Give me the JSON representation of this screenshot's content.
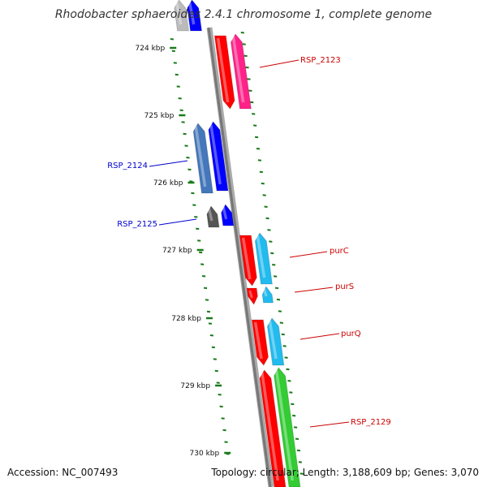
{
  "title": "Rhodobacter sphaeroides 2.4.1 chromosome 1, complete genome",
  "footer": {
    "accession": "Accession: NC_007493",
    "summary": "Topology: circular; Length: 3,188,609 bp; Genes: 3,070"
  },
  "ticks": [
    "724 kbp",
    "725 kbp",
    "726 kbp",
    "727 kbp",
    "728 kbp",
    "729 kbp",
    "730 kbp"
  ],
  "gene_labels": [
    {
      "name": "RSP_2123",
      "color": "#cc0000"
    },
    {
      "name": "RSP_2124",
      "color": "#0000cc"
    },
    {
      "name": "RSP_2125",
      "color": "#0000cc"
    },
    {
      "name": "purC",
      "color": "#cc0000"
    },
    {
      "name": "purS",
      "color": "#cc0000"
    },
    {
      "name": "purQ",
      "color": "#cc0000"
    },
    {
      "name": "RSP_2129",
      "color": "#cc0000"
    }
  ],
  "colors": {
    "backbone": "#888888",
    "tick_dots": "#1a7a1a",
    "forward_gene": "#ff0000",
    "forward_gene_alt": "#ff2288",
    "forward_gene_green": "#33cc33",
    "reverse_gene": "#0000ff",
    "reverse_gene_alt": "#4477bb",
    "reverse_gene_dark": "#555555",
    "cyan_gene": "#22bbee",
    "label_forward": "#cc0000",
    "label_reverse": "#0000cc"
  }
}
